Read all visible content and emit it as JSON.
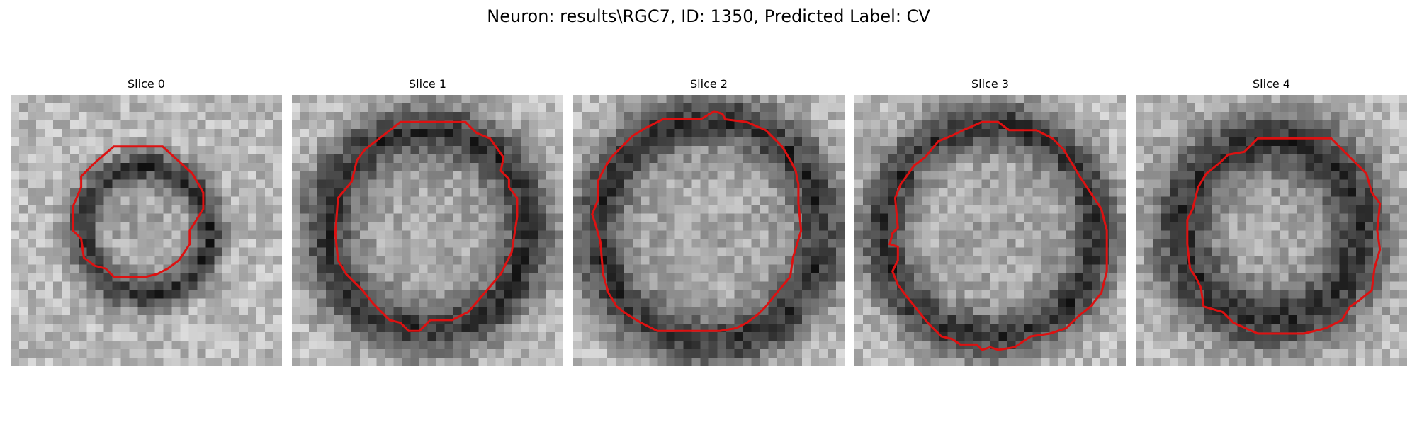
{
  "figure": {
    "title": "Neuron: results\\RGC7, ID: 1350, Predicted Label: CV"
  },
  "outline_color": "#dd1111",
  "panels": [
    {
      "label": "Slice 0",
      "ring_radius": 0.24,
      "ring_width": 0.06,
      "contour": [
        [
          0.38,
          0.19
        ],
        [
          0.56,
          0.19
        ],
        [
          0.67,
          0.29
        ],
        [
          0.71,
          0.36
        ],
        [
          0.71,
          0.42
        ],
        [
          0.66,
          0.5
        ],
        [
          0.66,
          0.55
        ],
        [
          0.62,
          0.61
        ],
        [
          0.58,
          0.64
        ],
        [
          0.54,
          0.66
        ],
        [
          0.5,
          0.67
        ],
        [
          0.38,
          0.67
        ],
        [
          0.35,
          0.64
        ],
        [
          0.31,
          0.63
        ],
        [
          0.27,
          0.6
        ],
        [
          0.26,
          0.53
        ],
        [
          0.23,
          0.5
        ],
        [
          0.23,
          0.41
        ],
        [
          0.26,
          0.34
        ],
        [
          0.26,
          0.3
        ],
        [
          0.31,
          0.25
        ]
      ]
    },
    {
      "label": "Slice 1",
      "ring_radius": 0.38,
      "ring_width": 0.1,
      "contour": [
        [
          0.4,
          0.1
        ],
        [
          0.64,
          0.1
        ],
        [
          0.68,
          0.14
        ],
        [
          0.73,
          0.16
        ],
        [
          0.78,
          0.23
        ],
        [
          0.77,
          0.28
        ],
        [
          0.8,
          0.31
        ],
        [
          0.8,
          0.34
        ],
        [
          0.83,
          0.38
        ],
        [
          0.83,
          0.45
        ],
        [
          0.81,
          0.58
        ],
        [
          0.77,
          0.66
        ],
        [
          0.71,
          0.73
        ],
        [
          0.65,
          0.8
        ],
        [
          0.59,
          0.83
        ],
        [
          0.51,
          0.83
        ],
        [
          0.47,
          0.87
        ],
        [
          0.43,
          0.87
        ],
        [
          0.4,
          0.84
        ],
        [
          0.36,
          0.83
        ],
        [
          0.3,
          0.77
        ],
        [
          0.26,
          0.72
        ],
        [
          0.2,
          0.66
        ],
        [
          0.17,
          0.61
        ],
        [
          0.16,
          0.51
        ],
        [
          0.17,
          0.38
        ],
        [
          0.22,
          0.32
        ],
        [
          0.24,
          0.24
        ],
        [
          0.27,
          0.2
        ],
        [
          0.31,
          0.17
        ]
      ]
    },
    {
      "label": "Slice 2",
      "ring_radius": 0.42,
      "ring_width": 0.1,
      "contour": [
        [
          0.33,
          0.09
        ],
        [
          0.47,
          0.09
        ],
        [
          0.52,
          0.06
        ],
        [
          0.55,
          0.07
        ],
        [
          0.56,
          0.09
        ],
        [
          0.64,
          0.1
        ],
        [
          0.71,
          0.13
        ],
        [
          0.77,
          0.19
        ],
        [
          0.8,
          0.24
        ],
        [
          0.82,
          0.28
        ],
        [
          0.83,
          0.33
        ],
        [
          0.83,
          0.4
        ],
        [
          0.84,
          0.5
        ],
        [
          0.81,
          0.6
        ],
        [
          0.8,
          0.67
        ],
        [
          0.75,
          0.73
        ],
        [
          0.71,
          0.78
        ],
        [
          0.68,
          0.81
        ],
        [
          0.64,
          0.84
        ],
        [
          0.6,
          0.86
        ],
        [
          0.54,
          0.87
        ],
        [
          0.31,
          0.87
        ],
        [
          0.25,
          0.84
        ],
        [
          0.2,
          0.81
        ],
        [
          0.16,
          0.78
        ],
        [
          0.13,
          0.73
        ],
        [
          0.11,
          0.66
        ],
        [
          0.1,
          0.54
        ],
        [
          0.08,
          0.47
        ],
        [
          0.07,
          0.44
        ],
        [
          0.09,
          0.39
        ],
        [
          0.09,
          0.32
        ],
        [
          0.11,
          0.28
        ],
        [
          0.14,
          0.23
        ],
        [
          0.18,
          0.19
        ],
        [
          0.22,
          0.15
        ],
        [
          0.27,
          0.12
        ]
      ]
    },
    {
      "label": "Slice 3",
      "ring_radius": 0.4,
      "ring_width": 0.09,
      "contour": [
        [
          0.4,
          0.13
        ],
        [
          0.47,
          0.1
        ],
        [
          0.53,
          0.1
        ],
        [
          0.57,
          0.13
        ],
        [
          0.67,
          0.13
        ],
        [
          0.73,
          0.16
        ],
        [
          0.77,
          0.2
        ],
        [
          0.8,
          0.25
        ],
        [
          0.83,
          0.3
        ],
        [
          0.87,
          0.36
        ],
        [
          0.91,
          0.42
        ],
        [
          0.93,
          0.5
        ],
        [
          0.93,
          0.65
        ],
        [
          0.91,
          0.73
        ],
        [
          0.87,
          0.78
        ],
        [
          0.82,
          0.82
        ],
        [
          0.78,
          0.86
        ],
        [
          0.72,
          0.88
        ],
        [
          0.65,
          0.89
        ],
        [
          0.62,
          0.91
        ],
        [
          0.59,
          0.93
        ],
        [
          0.53,
          0.94
        ],
        [
          0.5,
          0.93
        ],
        [
          0.47,
          0.94
        ],
        [
          0.45,
          0.92
        ],
        [
          0.39,
          0.92
        ],
        [
          0.36,
          0.9
        ],
        [
          0.32,
          0.89
        ],
        [
          0.27,
          0.84
        ],
        [
          0.23,
          0.79
        ],
        [
          0.19,
          0.74
        ],
        [
          0.16,
          0.7
        ],
        [
          0.14,
          0.65
        ],
        [
          0.16,
          0.61
        ],
        [
          0.16,
          0.56
        ],
        [
          0.13,
          0.55
        ],
        [
          0.14,
          0.51
        ],
        [
          0.16,
          0.49
        ],
        [
          0.15,
          0.38
        ],
        [
          0.17,
          0.33
        ],
        [
          0.22,
          0.26
        ],
        [
          0.26,
          0.23
        ],
        [
          0.31,
          0.17
        ],
        [
          0.36,
          0.15
        ]
      ]
    },
    {
      "label": "Slice 4",
      "ring_radius": 0.34,
      "ring_width": 0.12,
      "contour": [
        [
          0.45,
          0.16
        ],
        [
          0.72,
          0.16
        ],
        [
          0.78,
          0.22
        ],
        [
          0.85,
          0.29
        ],
        [
          0.87,
          0.36
        ],
        [
          0.9,
          0.4
        ],
        [
          0.89,
          0.5
        ],
        [
          0.9,
          0.57
        ],
        [
          0.88,
          0.64
        ],
        [
          0.87,
          0.72
        ],
        [
          0.82,
          0.76
        ],
        [
          0.79,
          0.78
        ],
        [
          0.76,
          0.83
        ],
        [
          0.7,
          0.86
        ],
        [
          0.62,
          0.88
        ],
        [
          0.45,
          0.88
        ],
        [
          0.36,
          0.84
        ],
        [
          0.32,
          0.8
        ],
        [
          0.25,
          0.78
        ],
        [
          0.24,
          0.71
        ],
        [
          0.22,
          0.67
        ],
        [
          0.2,
          0.64
        ],
        [
          0.19,
          0.55
        ],
        [
          0.19,
          0.46
        ],
        [
          0.21,
          0.42
        ],
        [
          0.23,
          0.34
        ],
        [
          0.26,
          0.29
        ],
        [
          0.31,
          0.25
        ],
        [
          0.34,
          0.22
        ],
        [
          0.4,
          0.21
        ]
      ]
    }
  ]
}
